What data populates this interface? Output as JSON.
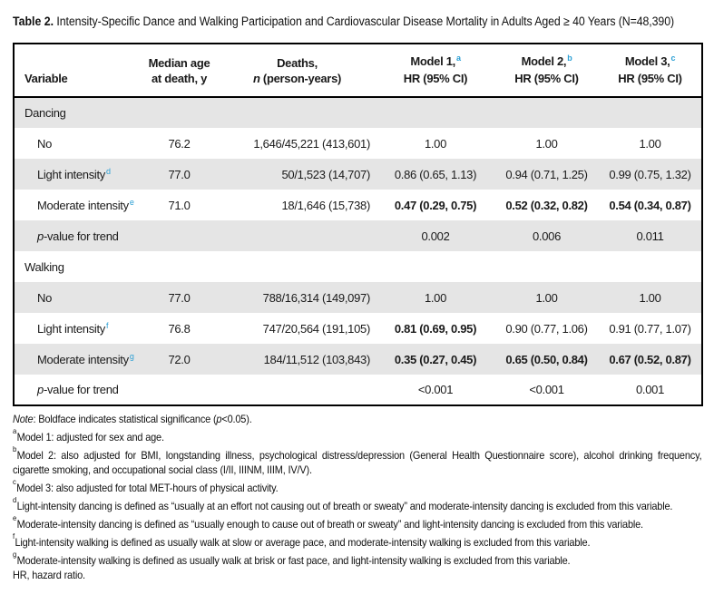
{
  "title": {
    "bold": "Table 2.",
    "rest": " Intensity-Specific Dance and Walking Participation and Cardiovascular Disease Mortality in Adults Aged ≥ 40 Years (N=48,390)"
  },
  "colors": {
    "superscript_blue": "#2b9fd4",
    "row_shade": "#e5e5e5",
    "border": "#000000"
  },
  "table": {
    "header": {
      "variable": "Variable",
      "age_l1": "Median age",
      "age_l2": "at death, y",
      "deaths_l1": "Deaths,",
      "deaths_n": "n",
      "deaths_l2": " (person-years)",
      "m1_l1": "Model 1,",
      "m1_sup": "a",
      "m1_l2": "HR (95% CI)",
      "m2_l1": "Model 2,",
      "m2_sup": "b",
      "m2_l2": "HR (95% CI)",
      "m3_l1": "Model 3,",
      "m3_sup": "c",
      "m3_l2": "HR (95% CI)"
    },
    "rows": [
      {
        "label": "Dancing"
      },
      {
        "label": "No",
        "age": "76.2",
        "deaths": "1,646/45,221 (413,601)",
        "m1": "1.00",
        "m2": "1.00",
        "m3": "1.00"
      },
      {
        "label": "Light intensity",
        "sup": "d",
        "age": "77.0",
        "deaths": "50/1,523 (14,707)",
        "m1": "0.86 (0.65, 1.13)",
        "m2": "0.94 (0.71, 1.25)",
        "m3": "0.99 (0.75, 1.32)"
      },
      {
        "label": "Moderate intensity",
        "sup": "e",
        "age": "71.0",
        "deaths": "18/1,646 (15,738)",
        "m1": "0.47 (0.29, 0.75)",
        "m2": "0.52 (0.32, 0.82)",
        "m3": "0.54 (0.34, 0.87)"
      },
      {
        "label_p": "p",
        "label_rest": "-value for trend",
        "m1": "0.002",
        "m2": "0.006",
        "m3": "0.011"
      },
      {
        "label": "Walking"
      },
      {
        "label": "No",
        "age": "77.0",
        "deaths": "788/16,314 (149,097)",
        "m1": "1.00",
        "m2": "1.00",
        "m3": "1.00"
      },
      {
        "label": "Light intensity",
        "sup": "f",
        "age": "76.8",
        "deaths": "747/20,564 (191,105)",
        "m1": "0.81 (0.69, 0.95)",
        "m2": "0.90 (0.77, 1.06)",
        "m3": "0.91 (0.77, 1.07)"
      },
      {
        "label": "Moderate intensity",
        "sup": "g",
        "age": "72.0",
        "deaths": "184/11,512 (103,843)",
        "m1": "0.35 (0.27, 0.45)",
        "m2": "0.65 (0.50, 0.84)",
        "m3": "0.67 (0.52, 0.87)"
      },
      {
        "label_p": "p",
        "label_rest": "-value for trend",
        "m1": "<0.001",
        "m2": "<0.001",
        "m3": "0.001"
      }
    ]
  },
  "footnotes": {
    "note": {
      "i1": "Note",
      "t1": ": Boldface indicates statistical significance (",
      "i2": "p",
      "t2": "<0.05)."
    },
    "items": [
      {
        "sup": "a",
        "text": "Model 1: adjusted for sex and age."
      },
      {
        "sup": "b",
        "text": "Model 2: also adjusted for BMI, longstanding illness, psychological distress/depression (General Health Questionnaire score), alcohol drinking frequency, cigarette smoking, and occupational social class (I/II, IIINM, IIIM, IV/V)."
      },
      {
        "sup": "c",
        "text": "Model 3: also adjusted for total MET-hours of physical activity."
      },
      {
        "sup": "d",
        "text": "Light-intensity dancing is defined as “usually at an effort not causing out of breath or sweaty” and moderate-intensity dancing is excluded from this variable."
      },
      {
        "sup": "e",
        "text": "Moderate-intensity dancing is defined as “usually enough to cause out of breath or sweaty” and light-intensity dancing is excluded from this variable."
      },
      {
        "sup": "f",
        "text": "Light-intensity walking is defined as usually walk at slow or average pace, and moderate-intensity walking is excluded from this variable."
      },
      {
        "sup": "g",
        "text": "Moderate-intensity walking is defined as usually walk at brisk or fast pace, and light-intensity walking is excluded from this variable."
      }
    ],
    "hr_line": "HR, hazard ratio."
  }
}
